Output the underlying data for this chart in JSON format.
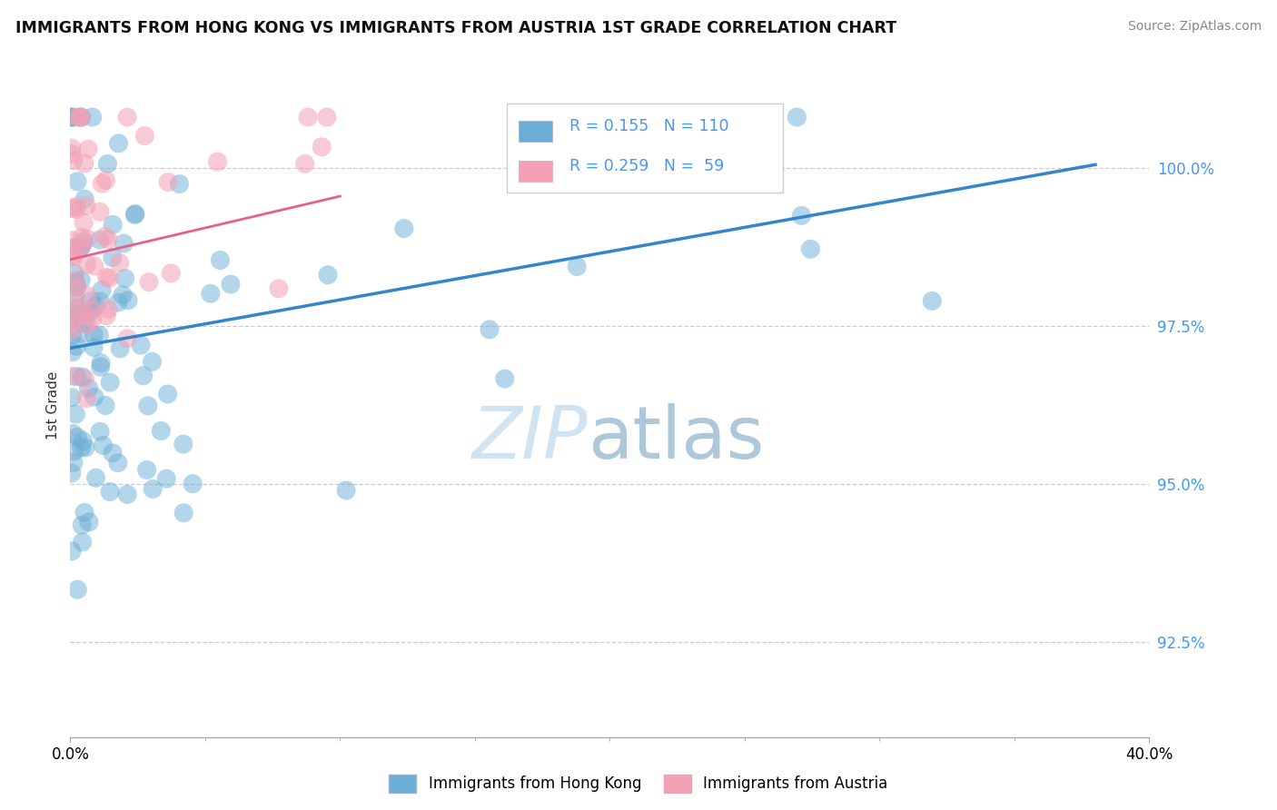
{
  "title": "IMMIGRANTS FROM HONG KONG VS IMMIGRANTS FROM AUSTRIA 1ST GRADE CORRELATION CHART",
  "source": "Source: ZipAtlas.com",
  "ylabel": "1st Grade",
  "xlim": [
    0.0,
    40.0
  ],
  "ylim": [
    91.0,
    101.5
  ],
  "ytick_vals": [
    92.5,
    95.0,
    97.5,
    100.0
  ],
  "legend_r1": "R = 0.155",
  "legend_n1": "N = 110",
  "legend_r2": "R = 0.259",
  "legend_n2": "N =  59",
  "series1_color": "#6baed6",
  "series2_color": "#f4a0b5",
  "trendline1_color": "#3385cc",
  "trendline2_color": "#e8608a",
  "label1": "Immigrants from Hong Kong",
  "label2": "Immigrants from Austria",
  "trendline1_x0": 0.0,
  "trendline1_y0": 97.15,
  "trendline1_x1": 38.0,
  "trendline1_y1": 100.05,
  "trendline2_x0": 0.0,
  "trendline2_y0": 98.55,
  "trendline2_x1": 10.0,
  "trendline2_y1": 99.55,
  "blue_seed": 42,
  "pink_seed": 99,
  "grid_color": "#cccccc",
  "watermark_zip_color": "#c8dff0",
  "watermark_atlas_color": "#a0bfd4"
}
